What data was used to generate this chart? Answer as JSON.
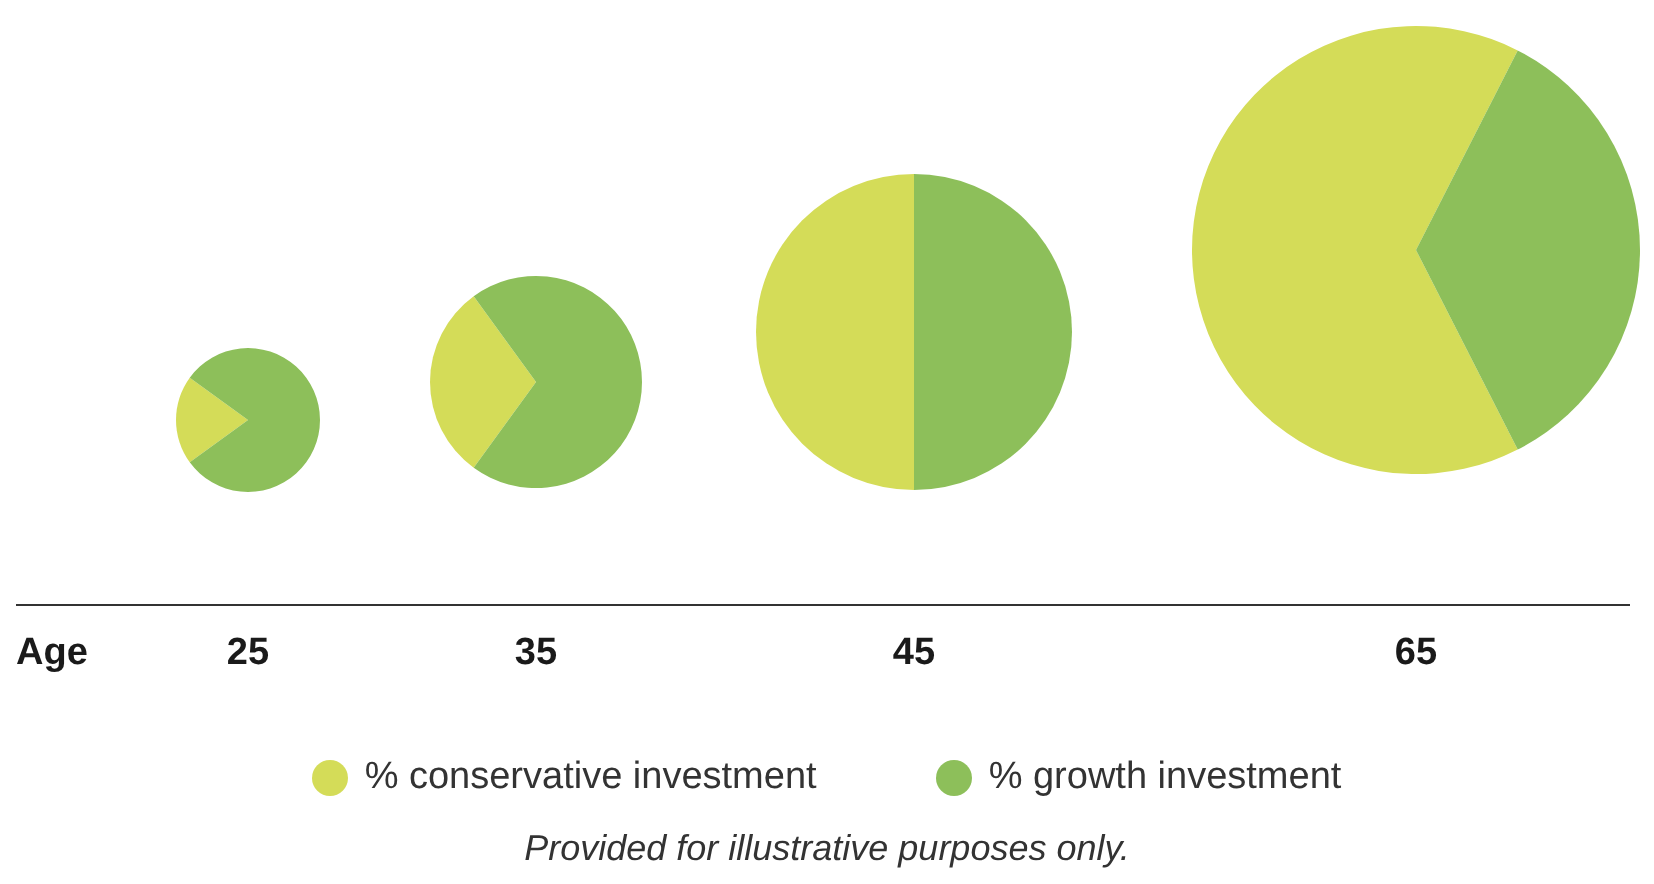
{
  "chart_data": [
    {
      "type": "pie",
      "xlabel": "25",
      "categories": [
        "% conservative investment",
        "% growth investment"
      ],
      "values": [
        20,
        80
      ],
      "colors": [
        "#d4dc58",
        "#8dbf5a"
      ],
      "legend": "bottom",
      "annotations": [
        "Age"
      ]
    },
    {
      "type": "pie",
      "xlabel": "35",
      "categories": [
        null,
        null
      ],
      "values": [
        30,
        70
      ],
      "colors": [
        "#d4dc58",
        "#8dbf5a"
      ]
    },
    {
      "type": "pie",
      "xlabel": "45",
      "categories": [
        null,
        null
      ],
      "values": [
        50,
        50
      ],
      "colors": [
        "#d4dc58",
        "#8dbf5a"
      ]
    },
    {
      "type": "pie",
      "xlabel": "65",
      "categories": [
        null,
        null
      ],
      "values": [
        65,
        35
      ],
      "colors": [
        "#d4dc58",
        "#8dbf5a"
      ],
      "annotations": [
        "Provided for illustrative purposes only."
      ]
    }
  ]
}
